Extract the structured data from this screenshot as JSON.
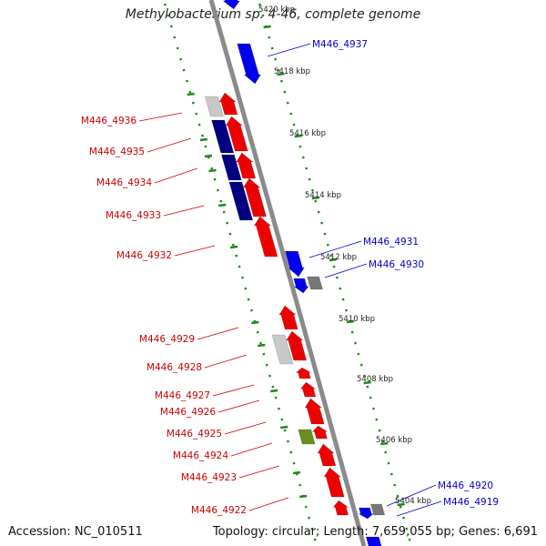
{
  "title": "Methylobacterium sp. 4-46, complete genome",
  "footer": {
    "accession": "Accession: NC_010511",
    "summary": "Topology: circular; Length: 7,659,055 bp; Genes: 6,691"
  },
  "colors": {
    "backbone": "#8a8a8a",
    "ruler": "#1a8a1a",
    "forward_label": "#cc0000",
    "reverse_label": "#0000cc",
    "red": "#ee0000",
    "blue": "#0000ee",
    "navy": "#000080",
    "gray": "#777777",
    "lightgray": "#c8c8c8",
    "olive": "#6b8e23"
  },
  "ticks": [
    "5420 kbp",
    "5418 kbp",
    "5416 kbp",
    "5414 kbp",
    "5412 kbp",
    "5410 kbp",
    "5408 kbp",
    "5406 kbp",
    "5404 kbp"
  ],
  "genes_forward": [
    "M446_4936",
    "M446_4935",
    "M446_4934",
    "M446_4933",
    "M446_4932",
    "M446_4929",
    "M446_4928",
    "M446_4927",
    "M446_4926",
    "M446_4925",
    "M446_4924",
    "M446_4923",
    "M446_4922"
  ],
  "genes_reverse": [
    "M446_4937",
    "M446_4931",
    "M446_4930",
    "M446_4920",
    "M446_4919"
  ]
}
